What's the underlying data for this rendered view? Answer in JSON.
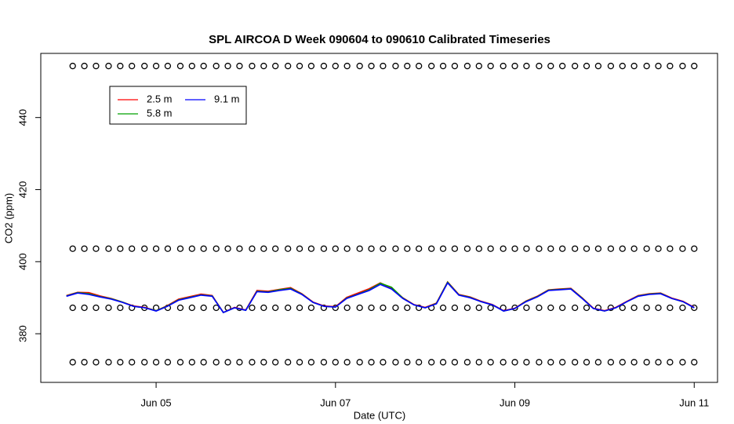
{
  "chart_data": {
    "type": "line",
    "title": "SPL AIRCOA D  Week 090604 to 090610  Calibrated Timeseries",
    "x_label": "Date (UTC)",
    "y_label": "CO2 (ppm)",
    "xlim": [
      3.714,
      11.26
    ],
    "xticks": [
      {
        "value": 5,
        "label": "Jun 05"
      },
      {
        "value": 7,
        "label": "Jun 07"
      },
      {
        "value": 9,
        "label": "Jun 09"
      },
      {
        "value": 11,
        "label": "Jun 11"
      }
    ],
    "ylim": [
      366.5,
      457.8
    ],
    "yticks": [
      380,
      400,
      420,
      440
    ],
    "legend": "topleft",
    "x": [
      4.0,
      4.125,
      4.25,
      4.375,
      4.5,
      4.625,
      4.75,
      4.875,
      5.0,
      5.125,
      5.25,
      5.375,
      5.5,
      5.625,
      5.75,
      5.875,
      6.0,
      6.125,
      6.25,
      6.375,
      6.5,
      6.625,
      6.75,
      6.875,
      7.0,
      7.125,
      7.25,
      7.375,
      7.5,
      7.625,
      7.75,
      7.875,
      8.0,
      8.125,
      8.25,
      8.375,
      8.5,
      8.625,
      8.75,
      8.875,
      9.0,
      9.125,
      9.25,
      9.375,
      9.5,
      9.625,
      9.75,
      9.875,
      10.0,
      10.125,
      10.25,
      10.375,
      10.5,
      10.625,
      10.75,
      10.875,
      11.0
    ],
    "series": [
      {
        "name": "2.5 m",
        "color": "#ff0000",
        "values": [
          390.6,
          391.5,
          391.4,
          390.5,
          389.8,
          388.8,
          387.7,
          387.3,
          386.4,
          387.8,
          389.6,
          390.3,
          391.0,
          390.6,
          385.9,
          387.3,
          386.6,
          392.0,
          391.8,
          392.3,
          392.8,
          391.1,
          388.8,
          387.7,
          387.5,
          390.1,
          391.3,
          392.5,
          394.1,
          392.7,
          390.0,
          388.1,
          387.3,
          388.5,
          394.4,
          390.9,
          390.2,
          389.0,
          388.1,
          386.4,
          387.1,
          389.1,
          390.4,
          392.2,
          392.4,
          392.6,
          390.0,
          387.1,
          386.4,
          387.3,
          389.0,
          390.6,
          391.1,
          391.3,
          389.9,
          389.0,
          387.3
        ]
      },
      {
        "name": "5.8 m",
        "color": "#00a000",
        "values": [
          390.5,
          391.4,
          391.1,
          390.3,
          389.7,
          388.8,
          387.6,
          387.2,
          386.4,
          387.7,
          389.4,
          390.1,
          390.8,
          390.5,
          385.9,
          387.2,
          386.5,
          391.8,
          391.6,
          392.2,
          392.6,
          391.0,
          388.7,
          387.6,
          387.4,
          389.9,
          391.0,
          392.2,
          394.0,
          392.9,
          389.9,
          388.0,
          387.2,
          388.4,
          394.3,
          390.8,
          390.1,
          388.9,
          388.0,
          386.3,
          387.0,
          389.0,
          390.3,
          392.1,
          392.3,
          392.5,
          389.9,
          387.0,
          386.3,
          387.2,
          388.9,
          390.5,
          391.0,
          391.2,
          389.8,
          388.9,
          387.2
        ]
      },
      {
        "name": "9.1 m",
        "color": "#0000ff",
        "values": [
          390.4,
          391.3,
          390.9,
          390.2,
          389.6,
          388.7,
          387.6,
          387.2,
          386.3,
          387.6,
          389.3,
          390.0,
          390.7,
          390.4,
          385.9,
          387.2,
          386.5,
          391.7,
          391.5,
          392.0,
          392.4,
          390.9,
          388.7,
          387.6,
          387.4,
          389.8,
          390.9,
          392.0,
          393.7,
          392.4,
          389.8,
          388.0,
          387.2,
          388.3,
          394.1,
          390.7,
          390.0,
          388.9,
          388.0,
          386.3,
          387.0,
          388.9,
          390.2,
          392.0,
          392.2,
          392.4,
          389.8,
          387.0,
          386.3,
          387.2,
          388.9,
          390.4,
          390.9,
          391.1,
          389.8,
          388.9,
          387.2
        ]
      }
    ],
    "calibration": {
      "x": [
        4.07,
        4.2,
        4.33,
        4.47,
        4.6,
        4.73,
        4.87,
        5.0,
        5.13,
        5.27,
        5.4,
        5.53,
        5.67,
        5.8,
        5.93,
        6.07,
        6.2,
        6.33,
        6.47,
        6.6,
        6.73,
        6.87,
        7.0,
        7.13,
        7.27,
        7.4,
        7.53,
        7.67,
        7.8,
        7.93,
        8.07,
        8.2,
        8.33,
        8.47,
        8.6,
        8.73,
        8.87,
        9.0,
        9.13,
        9.27,
        9.4,
        9.53,
        9.67,
        9.8,
        9.93,
        10.07,
        10.2,
        10.33,
        10.47,
        10.6,
        10.73,
        10.87,
        11.0
      ],
      "levels": [
        454.3,
        403.6,
        387.2,
        372.1
      ]
    }
  }
}
